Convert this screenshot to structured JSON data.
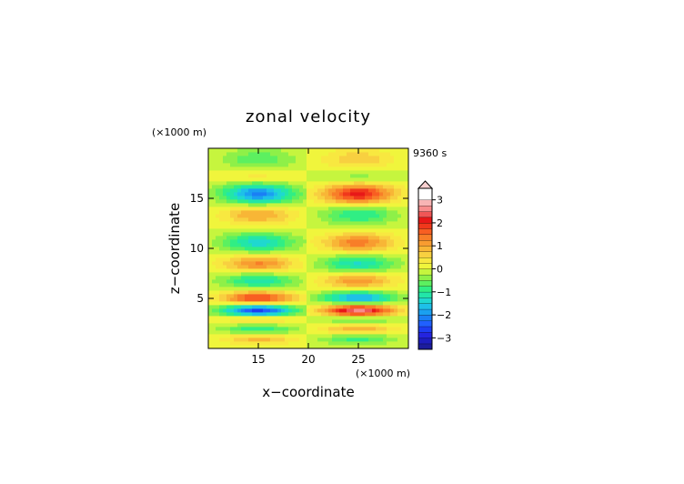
{
  "chart_data": {
    "type": "heatmap",
    "title": "zonal velocity",
    "xlabel": "x−coordinate",
    "ylabel": "z−coordinate",
    "x_unit": "(×1000 m)",
    "y_unit": "(×1000 m)",
    "time_label": "9360 s",
    "xlim": [
      10,
      30
    ],
    "ylim": [
      0,
      20
    ],
    "x_ticks": [
      15,
      20,
      25
    ],
    "y_ticks": [
      5,
      10,
      15
    ],
    "colorbar": {
      "ticks": [
        "3",
        "2",
        "1",
        "0",
        "−1",
        "−2",
        "−3"
      ],
      "tick_values": [
        3,
        2,
        1,
        0,
        -1,
        -2,
        -3
      ],
      "levels": [
        -3.5,
        -3.25,
        -3,
        -2.75,
        -2.5,
        -2.25,
        -2,
        -1.75,
        -1.5,
        -1.25,
        -1,
        -0.75,
        -0.5,
        -0.25,
        0,
        0.25,
        0.5,
        0.75,
        1,
        1.25,
        1.5,
        1.75,
        2,
        2.25,
        2.5,
        2.75,
        3,
        3.25,
        3.5
      ],
      "colors": [
        "#1c1c9c",
        "#1d1dbe",
        "#2424df",
        "#1d3df2",
        "#2060ff",
        "#1a7ff5",
        "#1aa0f0",
        "#1ec0e8",
        "#1fd8d0",
        "#22e6a8",
        "#30ee84",
        "#5cf060",
        "#8ef048",
        "#c6f53e",
        "#f0f53c",
        "#f8e840",
        "#f8d040",
        "#f8b636",
        "#f89c30",
        "#f87e28",
        "#f85e22",
        "#f0381c",
        "#e81818",
        "#f05656",
        "#f88c8c",
        "#f8b4b4"
      ],
      "extend": "max"
    },
    "bands": [
      {
        "z": 1.0,
        "amp": 0.9
      },
      {
        "z": 2.0,
        "amp": -1.1
      },
      {
        "z": 3.0,
        "amp": 1.2
      },
      {
        "z": 3.8,
        "amp": -3.0
      },
      {
        "z": 5.0,
        "amp": 2.0
      },
      {
        "z": 6.8,
        "amp": -1.2
      },
      {
        "z": 8.5,
        "amp": 1.3
      },
      {
        "z": 10.6,
        "amp": -1.4
      },
      {
        "z": 13.5,
        "amp": 1.1
      },
      {
        "z": 15.5,
        "amp": -2.2
      },
      {
        "z": 17.3,
        "amp": 0.8
      },
      {
        "z": 18.6,
        "amp": -0.9
      }
    ]
  }
}
